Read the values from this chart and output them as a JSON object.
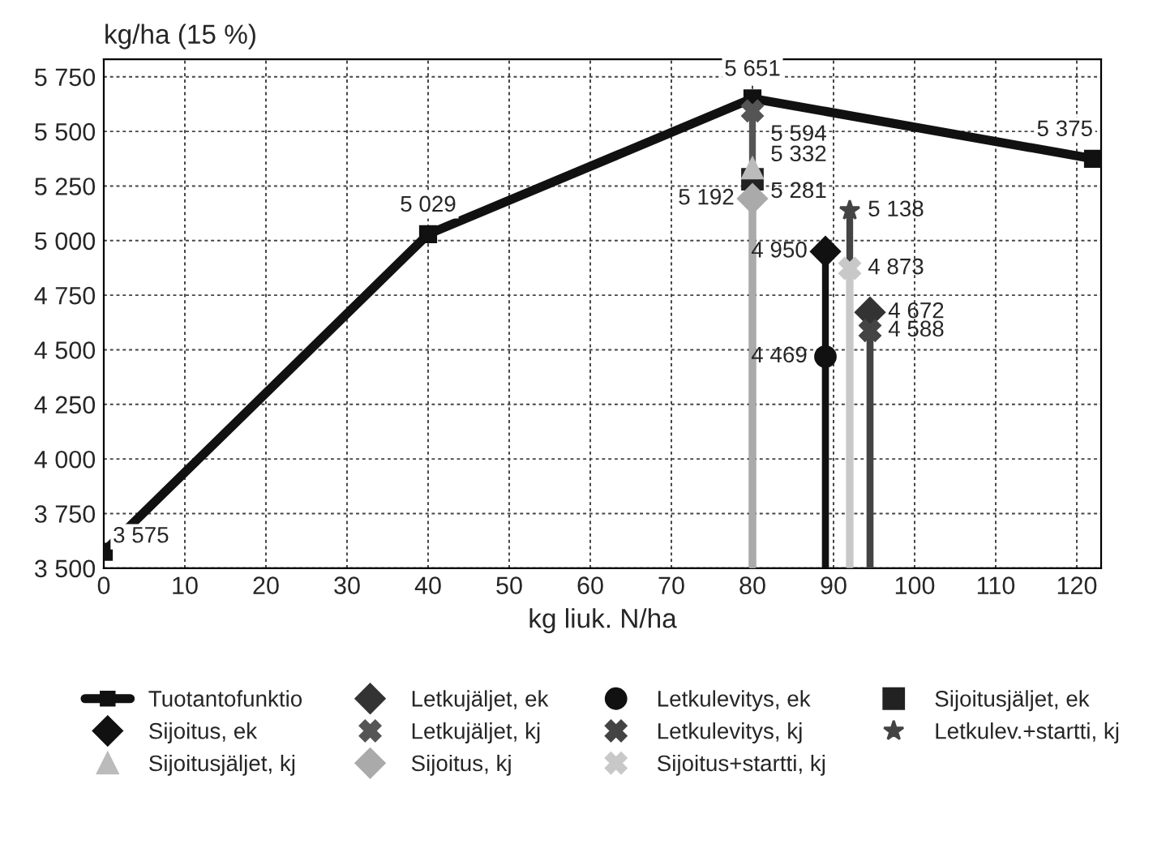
{
  "chart_data": {
    "type": "line",
    "ylabel": "kg/ha (15 %)",
    "xlabel": "kg liuk. N/ha",
    "xlim": [
      0,
      123
    ],
    "xticks": [
      0,
      10,
      20,
      30,
      40,
      50,
      60,
      70,
      80,
      90,
      100,
      110,
      120
    ],
    "ylim": [
      3500,
      5830
    ],
    "yticks": [
      {
        "value": 3500,
        "label": "3 500"
      },
      {
        "value": 3750,
        "label": "3 750"
      },
      {
        "value": 4000,
        "label": "4 000"
      },
      {
        "value": 4250,
        "label": "4 250"
      },
      {
        "value": 4500,
        "label": "4 500"
      },
      {
        "value": 4750,
        "label": "4 750"
      },
      {
        "value": 5000,
        "label": "5 000"
      },
      {
        "value": 5250,
        "label": "5 250"
      },
      {
        "value": 5500,
        "label": "5 500"
      },
      {
        "value": 5750,
        "label": "5 750"
      }
    ],
    "grid": true,
    "legend": "bottom",
    "series": [
      {
        "name": "Tuotantofunktio",
        "color": "#111111",
        "marker": "square",
        "x": [
          0,
          40,
          80,
          122
        ],
        "values": [
          3575,
          5029,
          5651,
          5375
        ],
        "value_labels": [
          "3 575",
          "5 029",
          "5 651",
          "5 375"
        ]
      },
      {
        "name": "Letkujäljet, ek",
        "type": "lollipop",
        "color": "#333333",
        "marker": "diamond",
        "x": [
          94.5
        ],
        "values": [
          4672
        ],
        "value_labels": [
          "4 672"
        ]
      },
      {
        "name": "Letkulevitys, ek",
        "type": "lollipop",
        "color": "#111111",
        "marker": "circle",
        "x": [
          89
        ],
        "values": [
          4469
        ],
        "value_labels": [
          "4 469"
        ]
      },
      {
        "name": "Sijoitusjäljet, ek",
        "type": "lollipop",
        "color": "#222222",
        "marker": "square",
        "x": [
          80
        ],
        "values": [
          5281
        ],
        "value_labels": [
          "5 281"
        ]
      },
      {
        "name": "Sijoitus, ek",
        "type": "lollipop",
        "color": "#111111",
        "marker": "diamond",
        "x": [
          89
        ],
        "values": [
          4950
        ],
        "value_labels": [
          "4 950"
        ]
      },
      {
        "name": "Letkujäljet, kj",
        "type": "lollipop",
        "color": "#555555",
        "marker": "cross",
        "x": [
          80
        ],
        "values": [
          5594
        ],
        "value_labels": [
          "5 594"
        ]
      },
      {
        "name": "Letkulevitys, kj",
        "type": "lollipop",
        "color": "#444444",
        "marker": "cross",
        "x": [
          94.5
        ],
        "values": [
          4588
        ],
        "value_labels": [
          "4 588"
        ]
      },
      {
        "name": "Letkulev.+startti, kj",
        "type": "lollipop",
        "color": "#444444",
        "marker": "star",
        "x": [
          92
        ],
        "values": [
          5138
        ],
        "value_labels": [
          "5 138"
        ]
      },
      {
        "name": "Sijoitusjäljet, kj",
        "type": "lollipop",
        "color": "#bbbbbb",
        "marker": "triangle",
        "x": [
          80
        ],
        "values": [
          5332
        ],
        "value_labels": [
          "5 332"
        ]
      },
      {
        "name": "Sijoitus, kj",
        "type": "lollipop",
        "color": "#aaaaaa",
        "marker": "diamond",
        "x": [
          80
        ],
        "values": [
          5192
        ],
        "value_labels": [
          "5 192"
        ]
      },
      {
        "name": "Sijoitus+startti, kj",
        "type": "lollipop",
        "color": "#c8c8c8",
        "marker": "cross",
        "x": [
          92
        ],
        "values": [
          4873
        ],
        "value_labels": [
          "4 873"
        ]
      }
    ]
  }
}
